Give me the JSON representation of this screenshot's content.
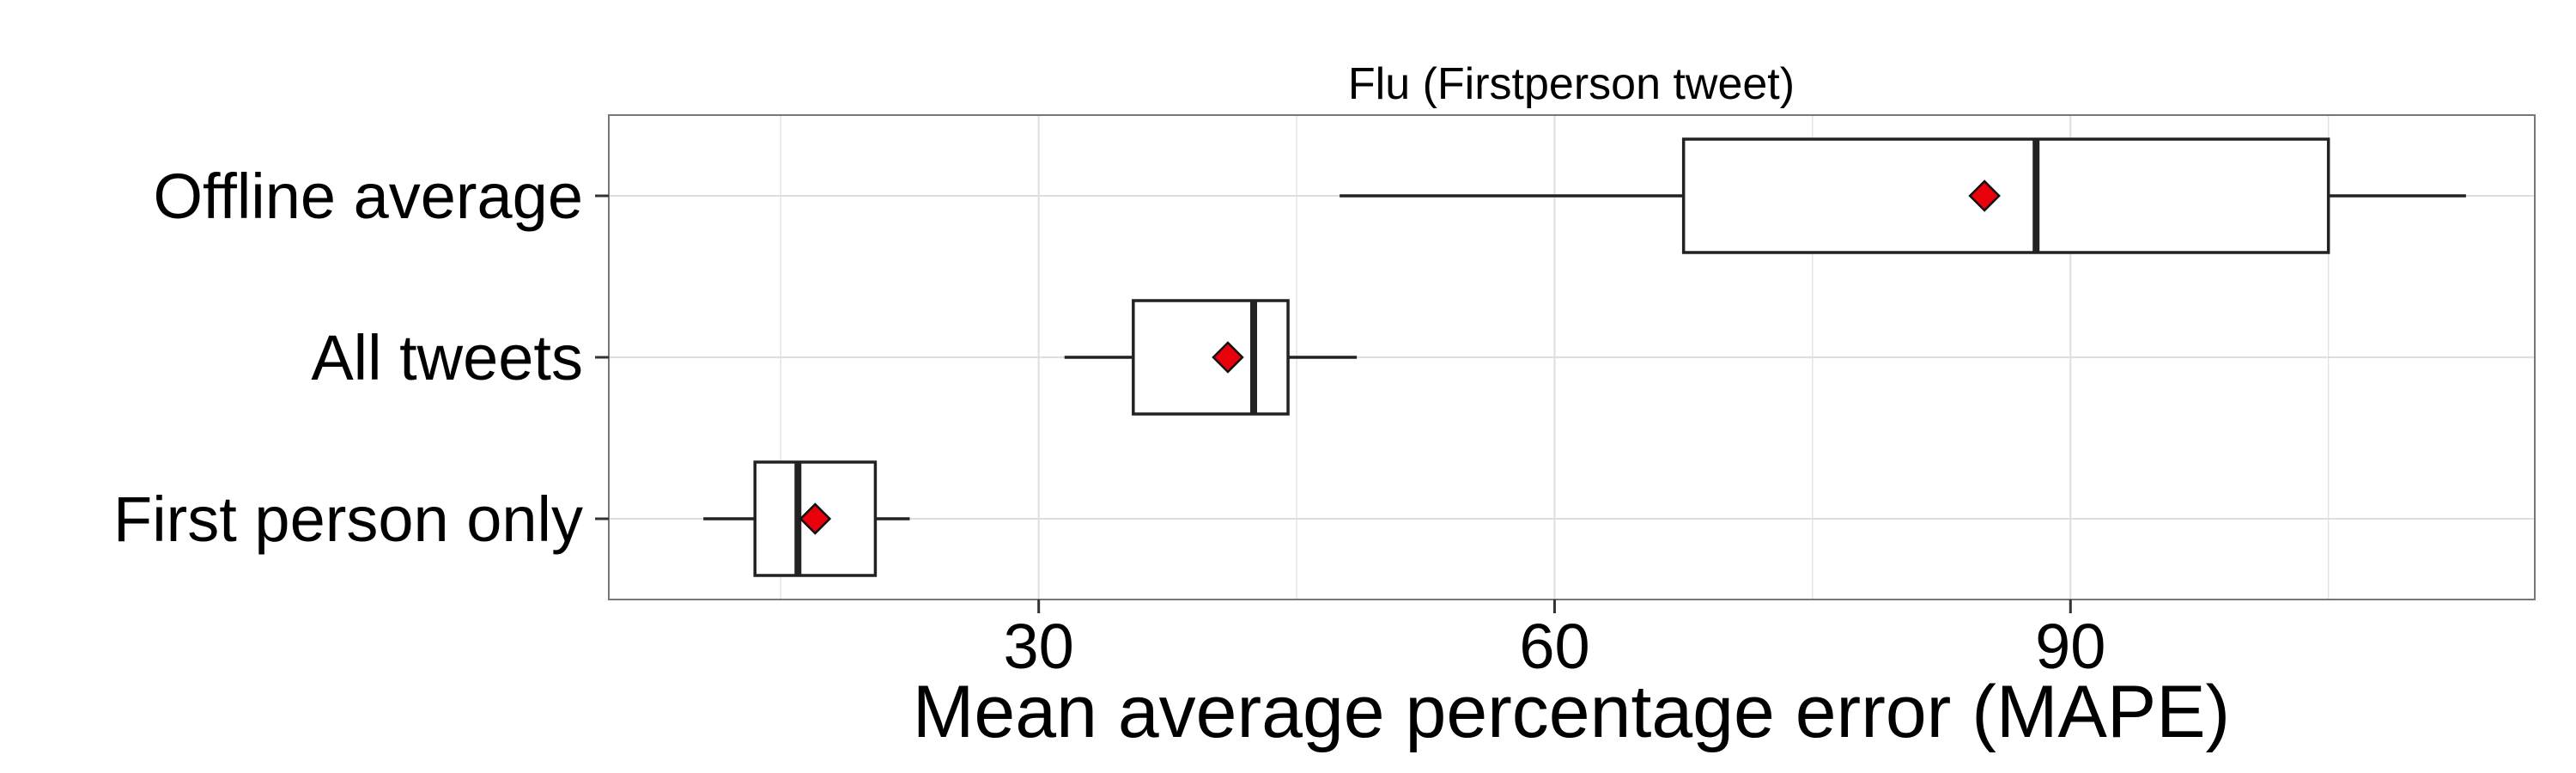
{
  "chart_data": {
    "type": "boxplot",
    "title": "Flu  (Firstperson tweet)",
    "xlabel": "Mean average percentage error (MAPE)",
    "ylabel": "",
    "xlim": [
      5,
      117
    ],
    "xticks": [
      30,
      60,
      90
    ],
    "xtick_labels": [
      "30",
      "60",
      "90"
    ],
    "grid": true,
    "orientation": "horizontal",
    "categories": [
      "Offline average",
      "All tweets",
      "First person only"
    ],
    "boxes": [
      {
        "category": "Offline average",
        "whisker_low": 47.5,
        "q1": 67.5,
        "median": 88.0,
        "q3": 105.0,
        "whisker_high": 113.0,
        "mean": 85.0
      },
      {
        "category": "All tweets",
        "whisker_low": 31.5,
        "q1": 35.5,
        "median": 42.5,
        "q3": 44.5,
        "whisker_high": 48.5,
        "mean": 41.0
      },
      {
        "category": "First person only",
        "whisker_low": 10.5,
        "q1": 13.5,
        "median": 16.0,
        "q3": 20.5,
        "whisker_high": 22.5,
        "mean": 17.0
      }
    ],
    "mean_marker_color": "#e8000b",
    "box_fill": "#ffffff",
    "box_stroke": "#222222",
    "grid_color": "#dedede",
    "panel_border_color": "#777777"
  }
}
